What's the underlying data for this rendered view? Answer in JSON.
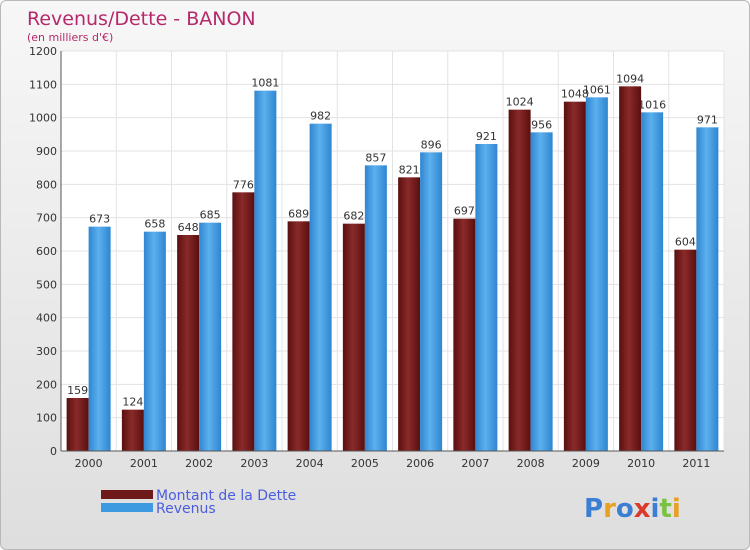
{
  "chart_data": {
    "type": "bar",
    "title": "Revenus/Dette - BANON",
    "subtitle": "(en milliers d'€)",
    "categories": [
      "2000",
      "2001",
      "2002",
      "2003",
      "2004",
      "2005",
      "2006",
      "2007",
      "2008",
      "2009",
      "2010",
      "2011"
    ],
    "series": [
      {
        "name": "Montant de la Dette",
        "color": "#6e1a1a",
        "values": [
          159,
          124,
          648,
          776,
          689,
          682,
          821,
          697,
          1024,
          1048,
          1094,
          604
        ]
      },
      {
        "name": "Revenus",
        "color": "#3d9ae0",
        "values": [
          673,
          658,
          685,
          1081,
          982,
          857,
          896,
          921,
          956,
          1061,
          1016,
          971
        ]
      }
    ],
    "yticks": [
      "0",
      "100",
      "200",
      "300",
      "400",
      "500",
      "600",
      "700",
      "800",
      "900",
      "1000",
      "1100",
      "1200"
    ],
    "ylim": [
      0,
      1200
    ],
    "grid": true,
    "legend_position": "bottom-left"
  },
  "logo": {
    "letters": [
      {
        "ch": "P",
        "color": "#3b7fd4"
      },
      {
        "ch": "r",
        "color": "#e8a020"
      },
      {
        "ch": "o",
        "color": "#3b7fd4"
      },
      {
        "ch": "x",
        "color": "#d93a2b"
      },
      {
        "ch": "i",
        "color": "#3b7fd4"
      },
      {
        "ch": "t",
        "color": "#7cc242"
      },
      {
        "ch": "i",
        "color": "#e8a020"
      }
    ]
  }
}
